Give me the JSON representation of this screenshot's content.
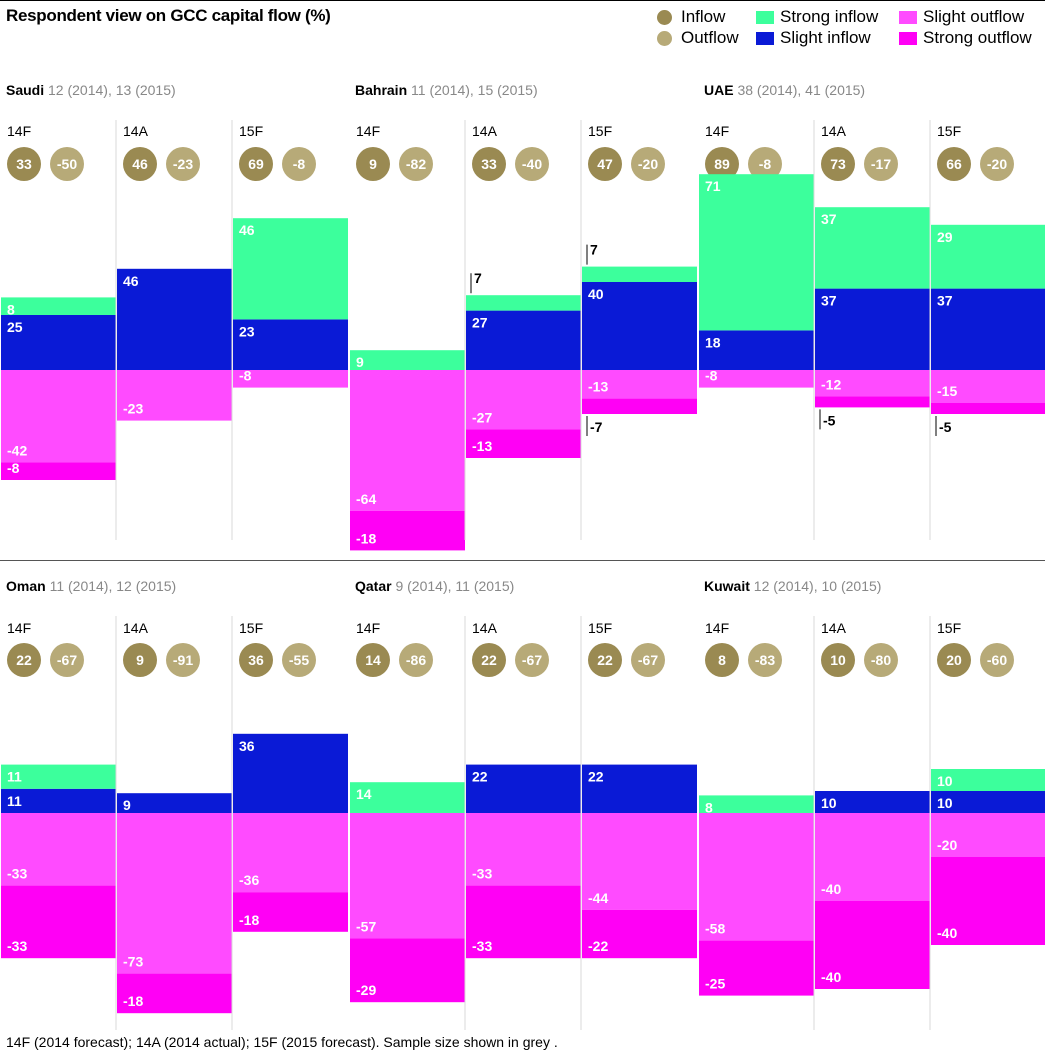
{
  "title": "Respondent view on GCC capital flow (%)",
  "footnote": "14F (2014 forecast); 14A (2014 actual); 15F (2015 forecast). Sample size shown in grey .",
  "legend": {
    "inflow": "Inflow",
    "outflow": "Outflow",
    "strong_inflow": "Strong inflow",
    "slight_inflow": "Slight inflow",
    "slight_outflow": "Slight outflow",
    "strong_outflow": "Strong outflow"
  },
  "colors": {
    "inflow_circle": "#9a8a52",
    "outflow_circle": "#b7aa78",
    "strong_inflow": "#3cff9c",
    "slight_inflow": "#0a1ad6",
    "slight_outflow": "#ff4bff",
    "strong_outflow": "#ff00f5",
    "sample_grey": "#888888"
  },
  "chart_data": {
    "type": "bar",
    "subtype": "stacked diverging bar (small multiples)",
    "unit": "%",
    "series_names": [
      "Strong inflow",
      "Slight inflow",
      "Slight outflow",
      "Strong outflow"
    ],
    "panels": [
      {
        "country": "Saudi",
        "sample": "12 (2014), 13 (2015)",
        "periods": [
          {
            "label": "14F",
            "inflow": "33",
            "outflow": "-50",
            "strong_in": 8,
            "slight_in": 25,
            "slight_out": -42,
            "strong_out": -8
          },
          {
            "label": "14A",
            "inflow": "46",
            "outflow": "-23",
            "strong_in": 0,
            "slight_in": 46,
            "slight_out": -23,
            "strong_out": 0
          },
          {
            "label": "15F",
            "inflow": "69",
            "outflow": "-8",
            "strong_in": 46,
            "slight_in": 23,
            "slight_out": -8,
            "strong_out": 0
          }
        ]
      },
      {
        "country": "Bahrain",
        "sample": "11 (2014), 15 (2015)",
        "periods": [
          {
            "label": "14F",
            "inflow": "9",
            "outflow": "-82",
            "strong_in": 9,
            "slight_in": 0,
            "slight_out": -64,
            "strong_out": -18
          },
          {
            "label": "14A",
            "inflow": "33",
            "outflow": "-40",
            "strong_in": 7,
            "slight_in": 27,
            "slight_out": -27,
            "strong_out": -13
          },
          {
            "label": "15F",
            "inflow": "47",
            "outflow": "-20",
            "strong_in": 7,
            "slight_in": 40,
            "slight_out": -13,
            "strong_out": -7
          }
        ]
      },
      {
        "country": "UAE",
        "sample": "38 (2014), 41 (2015)",
        "periods": [
          {
            "label": "14F",
            "inflow": "89",
            "outflow": "-8",
            "strong_in": 71,
            "slight_in": 18,
            "slight_out": -8,
            "strong_out": 0
          },
          {
            "label": "14A",
            "inflow": "73",
            "outflow": "-17",
            "strong_in": 37,
            "slight_in": 37,
            "slight_out": -12,
            "strong_out": -5
          },
          {
            "label": "15F",
            "inflow": "66",
            "outflow": "-20",
            "strong_in": 29,
            "slight_in": 37,
            "slight_out": -15,
            "strong_out": -5
          }
        ]
      },
      {
        "country": "Oman",
        "sample": "11 (2014), 12 (2015)",
        "periods": [
          {
            "label": "14F",
            "inflow": "22",
            "outflow": "-67",
            "strong_in": 11,
            "slight_in": 11,
            "slight_out": -33,
            "strong_out": -33
          },
          {
            "label": "14A",
            "inflow": "9",
            "outflow": "-91",
            "strong_in": 0,
            "slight_in": 9,
            "slight_out": -73,
            "strong_out": -18
          },
          {
            "label": "15F",
            "inflow": "36",
            "outflow": "-55",
            "strong_in": 0,
            "slight_in": 36,
            "slight_out": -36,
            "strong_out": -18
          }
        ]
      },
      {
        "country": "Qatar",
        "sample": "9 (2014), 11 (2015)",
        "periods": [
          {
            "label": "14F",
            "inflow": "14",
            "outflow": "-86",
            "strong_in": 14,
            "slight_in": 0,
            "slight_out": -57,
            "strong_out": -29
          },
          {
            "label": "14A",
            "inflow": "22",
            "outflow": "-67",
            "strong_in": 0,
            "slight_in": 22,
            "slight_out": -33,
            "strong_out": -33
          },
          {
            "label": "15F",
            "inflow": "22",
            "outflow": "-67",
            "strong_in": 0,
            "slight_in": 22,
            "slight_out": -44,
            "strong_out": -22
          }
        ]
      },
      {
        "country": "Kuwait",
        "sample": "12 (2014), 10 (2015)",
        "periods": [
          {
            "label": "14F",
            "inflow": "8",
            "outflow": "-83",
            "strong_in": 8,
            "slight_in": 0,
            "slight_out": -58,
            "strong_out": -25
          },
          {
            "label": "14A",
            "inflow": "10",
            "outflow": "-80",
            "strong_in": 0,
            "slight_in": 10,
            "slight_out": -40,
            "strong_out": -40
          },
          {
            "label": "15F",
            "inflow": "20",
            "outflow": "-60",
            "strong_in": 10,
            "slight_in": 10,
            "slight_out": -20,
            "strong_out": -40
          }
        ]
      }
    ]
  }
}
